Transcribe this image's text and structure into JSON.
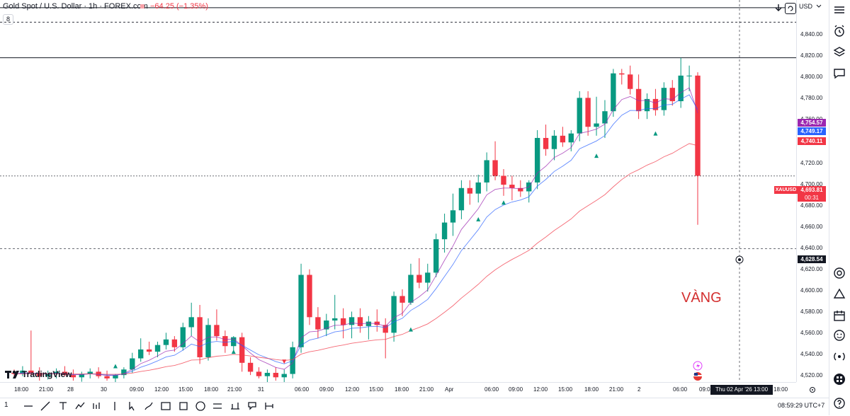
{
  "header": {
    "title": "Gold Spot / U.S. Dollar · 1h · FOREX.com",
    "change": "−64.25 (−1.35%)",
    "chip": "8"
  },
  "price_axis": {
    "currency": "USD",
    "ticks": [
      "4,840.00",
      "4,820.00",
      "4,800.00",
      "4,780.00",
      "4,760.00",
      "4,720.00",
      "4,700.00",
      "4,680.00",
      "4,660.00",
      "4,640.00",
      "4,620.00",
      "4,600.00",
      "4,580.00",
      "4,560.00",
      "4,540.00",
      "4,520.00"
    ],
    "labels": {
      "ema_purple": "4,754.57",
      "ema_blue": "4,749.17",
      "ema_red": "4,740.11",
      "last_price": "4,693.81",
      "countdown": "00:31",
      "crosshair": "4,628.54"
    },
    "symbol": "XAUUSD"
  },
  "time_axis": {
    "ticks": [
      "18:00",
      "21:00",
      "28",
      "30",
      "09:00",
      "12:00",
      "15:00",
      "18:00",
      "21:00",
      "31",
      "06:00",
      "09:00",
      "12:00",
      "15:00",
      "18:00",
      "21:00",
      "Apr",
      "06:00",
      "09:00",
      "12:00",
      "15:00",
      "18:00",
      "21:00",
      "2",
      "06:00",
      "09:00",
      "18:00"
    ],
    "date_tag": "Thu 02 Apr '26  13:00"
  },
  "annotation": "VÀNG",
  "logo": "TradingView",
  "clock": "08:59:29 UTC+7",
  "chart_data": {
    "type": "candlestick",
    "ylim": [
      4510,
      4850
    ],
    "candles": [
      [
        4517,
        4520,
        4512,
        4516
      ],
      [
        4516,
        4523,
        4514,
        4519
      ],
      [
        4519,
        4555,
        4515,
        4517
      ],
      [
        4517,
        4522,
        4510,
        4514
      ],
      [
        4514,
        4519,
        4511,
        4516
      ],
      [
        4516,
        4521,
        4512,
        4518
      ],
      [
        4518,
        4523,
        4514,
        4515
      ],
      [
        4515,
        4520,
        4510,
        4513
      ],
      [
        4513,
        4518,
        4509,
        4516
      ],
      [
        4516,
        4521,
        4512,
        4518
      ],
      [
        4518,
        4522,
        4512,
        4514
      ],
      [
        4514,
        4519,
        4510,
        4512
      ],
      [
        4512,
        4516,
        4508,
        4515
      ],
      [
        4515,
        4522,
        4512,
        4520
      ],
      [
        4520,
        4535,
        4517,
        4530
      ],
      [
        4530,
        4548,
        4527,
        4538
      ],
      [
        4538,
        4545,
        4533,
        4536
      ],
      [
        4536,
        4545,
        4531,
        4542
      ],
      [
        4542,
        4553,
        4538,
        4547
      ],
      [
        4547,
        4550,
        4536,
        4540
      ],
      [
        4540,
        4562,
        4537,
        4558
      ],
      [
        4558,
        4580,
        4550,
        4567
      ],
      [
        4567,
        4578,
        4525,
        4531
      ],
      [
        4531,
        4566,
        4528,
        4560
      ],
      [
        4560,
        4574,
        4546,
        4550
      ],
      [
        4550,
        4555,
        4535,
        4541
      ],
      [
        4541,
        4550,
        4535,
        4549
      ],
      [
        4549,
        4553,
        4518,
        4526
      ],
      [
        4526,
        4531,
        4515,
        4518
      ],
      [
        4518,
        4522,
        4512,
        4514
      ],
      [
        4514,
        4520,
        4508,
        4517
      ],
      [
        4517,
        4522,
        4510,
        4513
      ],
      [
        4513,
        4520,
        4505,
        4516
      ],
      [
        4516,
        4545,
        4512,
        4540
      ],
      [
        4540,
        4615,
        4535,
        4605
      ],
      [
        4605,
        4610,
        4560,
        4567
      ],
      [
        4567,
        4576,
        4548,
        4556
      ],
      [
        4556,
        4570,
        4550,
        4564
      ],
      [
        4564,
        4587,
        4556,
        4566
      ],
      [
        4566,
        4575,
        4548,
        4560
      ],
      [
        4560,
        4572,
        4548,
        4567
      ],
      [
        4567,
        4575,
        4553,
        4559
      ],
      [
        4559,
        4568,
        4547,
        4563
      ],
      [
        4563,
        4574,
        4554,
        4560
      ],
      [
        4560,
        4566,
        4530,
        4553
      ],
      [
        4553,
        4590,
        4545,
        4586
      ],
      [
        4586,
        4592,
        4568,
        4580
      ],
      [
        4580,
        4615,
        4578,
        4605
      ],
      [
        4605,
        4620,
        4593,
        4598
      ],
      [
        4598,
        4615,
        4590,
        4607
      ],
      [
        4607,
        4642,
        4603,
        4637
      ],
      [
        4637,
        4660,
        4625,
        4652
      ],
      [
        4652,
        4678,
        4640,
        4663
      ],
      [
        4663,
        4690,
        4655,
        4683
      ],
      [
        4683,
        4690,
        4668,
        4678
      ],
      [
        4678,
        4695,
        4670,
        4688
      ],
      [
        4688,
        4715,
        4680,
        4708
      ],
      [
        4708,
        4725,
        4690,
        4694
      ],
      [
        4694,
        4700,
        4676,
        4686
      ],
      [
        4686,
        4694,
        4672,
        4683
      ],
      [
        4683,
        4690,
        4675,
        4680
      ],
      [
        4680,
        4690,
        4670,
        4688
      ],
      [
        4688,
        4735,
        4682,
        4728
      ],
      [
        4728,
        4740,
        4712,
        4718
      ],
      [
        4718,
        4735,
        4708,
        4730
      ],
      [
        4730,
        4738,
        4720,
        4724
      ],
      [
        4724,
        4735,
        4716,
        4732
      ],
      [
        4732,
        4770,
        4725,
        4764
      ],
      [
        4764,
        4770,
        4730,
        4738
      ],
      [
        4738,
        4765,
        4730,
        4741
      ],
      [
        4741,
        4762,
        4728,
        4752
      ],
      [
        4752,
        4790,
        4747,
        4786
      ],
      [
        4786,
        4790,
        4776,
        4785
      ],
      [
        4785,
        4793,
        4767,
        4772
      ],
      [
        4772,
        4785,
        4745,
        4752
      ],
      [
        4752,
        4768,
        4745,
        4763
      ],
      [
        4763,
        4772,
        4748,
        4753
      ],
      [
        4753,
        4778,
        4748,
        4773
      ],
      [
        4773,
        4780,
        4757,
        4761
      ],
      [
        4761,
        4800,
        4755,
        4784
      ],
      [
        4784,
        4793,
        4770,
        4784
      ],
      [
        4784,
        4787,
        4650,
        4694
      ]
    ]
  }
}
